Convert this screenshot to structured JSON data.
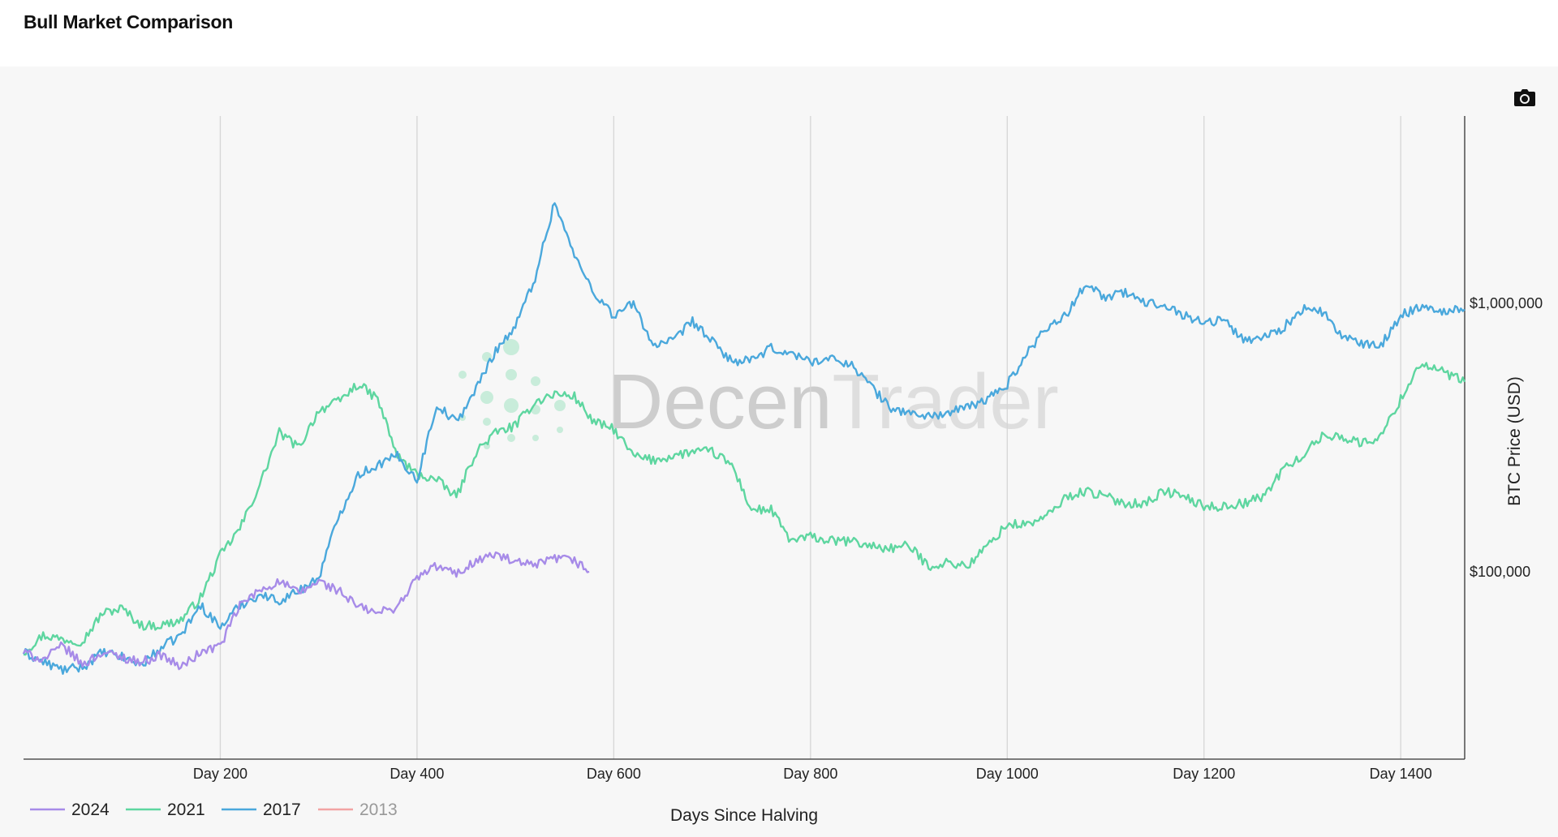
{
  "page": {
    "title": "Bull Market Comparison"
  },
  "toolbar": {
    "camera_icon": "camera-icon"
  },
  "watermark": {
    "text_dark": "Decen",
    "text_light": "Trader"
  },
  "colors": {
    "s2024": "#a78be8",
    "s2021": "#5ed6a0",
    "s2017": "#4aa8dc",
    "s2013": "#f2a3a3"
  },
  "chart_data": {
    "type": "line",
    "title": "Bull Market Comparison",
    "xlabel": "Days Since Halving",
    "ylabel": "BTC Price (USD)",
    "y_scale": "log",
    "xlim": [
      0,
      1465
    ],
    "ylim": [
      20000,
      5000000
    ],
    "x_ticks": [
      {
        "value": 200,
        "label": "Day 200"
      },
      {
        "value": 400,
        "label": "Day 400"
      },
      {
        "value": 600,
        "label": "Day 600"
      },
      {
        "value": 800,
        "label": "Day 800"
      },
      {
        "value": 1000,
        "label": "Day 1000"
      },
      {
        "value": 1200,
        "label": "Day 1200"
      },
      {
        "value": 1400,
        "label": "Day 1400"
      }
    ],
    "y_ticks": [
      {
        "value": 100000,
        "label": "$100,000"
      },
      {
        "value": 1000000,
        "label": "$1,000,000"
      }
    ],
    "legend_position": "bottom-left",
    "series": [
      {
        "name": "2024",
        "color": "#a78be8",
        "visible": true,
        "x": [
          0,
          20,
          40,
          60,
          80,
          100,
          120,
          140,
          160,
          180,
          200,
          220,
          240,
          260,
          280,
          300,
          320,
          340,
          360,
          380,
          400,
          420,
          440,
          460,
          480,
          500,
          520,
          540,
          560,
          575
        ],
        "y": [
          50000,
          47000,
          53000,
          45000,
          50000,
          48000,
          46000,
          49000,
          44000,
          50000,
          53000,
          75000,
          85000,
          92000,
          83000,
          92000,
          85000,
          74000,
          70000,
          74000,
          95000,
          105000,
          98000,
          110000,
          116000,
          108000,
          105000,
          112000,
          110000,
          100000
        ]
      },
      {
        "name": "2021",
        "color": "#5ed6a0",
        "visible": true,
        "x": [
          0,
          20,
          40,
          60,
          80,
          100,
          120,
          140,
          160,
          180,
          200,
          220,
          240,
          260,
          280,
          300,
          320,
          340,
          360,
          380,
          400,
          420,
          440,
          460,
          480,
          500,
          520,
          540,
          560,
          580,
          600,
          620,
          640,
          660,
          680,
          700,
          720,
          740,
          760,
          780,
          800,
          820,
          840,
          860,
          880,
          900,
          920,
          940,
          960,
          980,
          1000,
          1020,
          1040,
          1060,
          1080,
          1100,
          1120,
          1140,
          1160,
          1180,
          1200,
          1220,
          1240,
          1260,
          1280,
          1300,
          1320,
          1340,
          1360,
          1380,
          1400,
          1420,
          1440,
          1465
        ],
        "y": [
          50000,
          58000,
          56000,
          55000,
          70000,
          73000,
          63000,
          63000,
          66000,
          80000,
          115000,
          145000,
          210000,
          330000,
          290000,
          400000,
          430000,
          500000,
          440000,
          270000,
          230000,
          220000,
          190000,
          280000,
          330000,
          350000,
          430000,
          460000,
          450000,
          360000,
          340000,
          270000,
          260000,
          270000,
          280000,
          280000,
          250000,
          170000,
          170000,
          130000,
          135000,
          130000,
          130000,
          125000,
          122000,
          125000,
          105000,
          108000,
          105000,
          125000,
          150000,
          150000,
          160000,
          190000,
          200000,
          190000,
          180000,
          180000,
          200000,
          190000,
          175000,
          175000,
          180000,
          190000,
          240000,
          270000,
          320000,
          320000,
          300000,
          320000,
          440000,
          600000,
          560000,
          510000
        ]
      },
      {
        "name": "2017",
        "color": "#4aa8dc",
        "visible": true,
        "x": [
          0,
          20,
          40,
          60,
          80,
          100,
          120,
          140,
          160,
          180,
          200,
          220,
          240,
          260,
          280,
          300,
          320,
          340,
          360,
          380,
          400,
          420,
          440,
          460,
          480,
          500,
          520,
          540,
          560,
          580,
          600,
          620,
          640,
          660,
          680,
          700,
          720,
          740,
          760,
          780,
          800,
          820,
          840,
          860,
          880,
          900,
          920,
          940,
          960,
          980,
          1000,
          1020,
          1040,
          1060,
          1080,
          1100,
          1120,
          1140,
          1160,
          1180,
          1200,
          1220,
          1240,
          1260,
          1280,
          1300,
          1320,
          1340,
          1360,
          1380,
          1400,
          1420,
          1440,
          1465
        ],
        "y": [
          50000,
          46000,
          43000,
          44000,
          50000,
          48000,
          45000,
          52000,
          58000,
          75000,
          62000,
          75000,
          82000,
          78000,
          85000,
          95000,
          160000,
          230000,
          250000,
          270000,
          220000,
          420000,
          360000,
          480000,
          670000,
          820000,
          1250000,
          2400000,
          1500000,
          1100000,
          900000,
          1000000,
          700000,
          720000,
          860000,
          720000,
          610000,
          610000,
          680000,
          650000,
          610000,
          620000,
          600000,
          500000,
          410000,
          390000,
          380000,
          390000,
          410000,
          440000,
          500000,
          650000,
          820000,
          900000,
          1200000,
          1050000,
          1100000,
          1000000,
          1000000,
          900000,
          850000,
          870000,
          730000,
          750000,
          810000,
          950000,
          930000,
          760000,
          700000,
          700000,
          900000,
          980000,
          940000,
          950000
        ]
      },
      {
        "name": "2013",
        "color": "#f2a3a3",
        "visible": false,
        "x": [],
        "y": []
      }
    ]
  }
}
